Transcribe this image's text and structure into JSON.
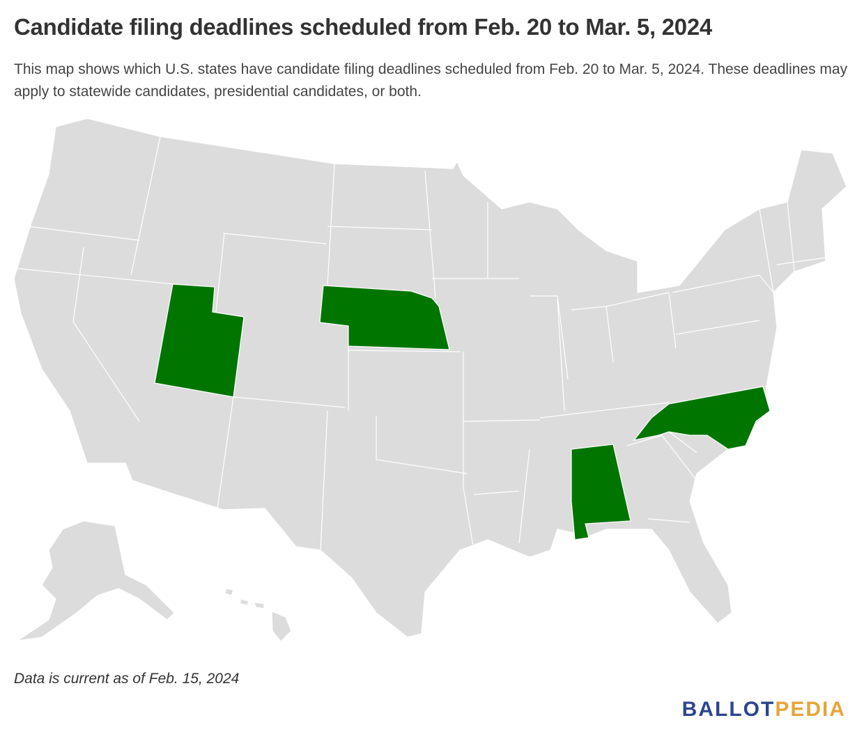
{
  "header": {
    "title": "Candidate filing deadlines scheduled from Feb. 20 to Mar. 5, 2024",
    "subtitle": "This map shows which U.S. states have candidate filing deadlines scheduled from Feb. 20 to Mar. 5, 2024. These deadlines may apply to statewide candidates, presidential candidates, or both."
  },
  "footer": {
    "note": "Data is current as of Feb. 15, 2024",
    "logo": [
      "BALLOT",
      "PEDIA"
    ]
  }
}
